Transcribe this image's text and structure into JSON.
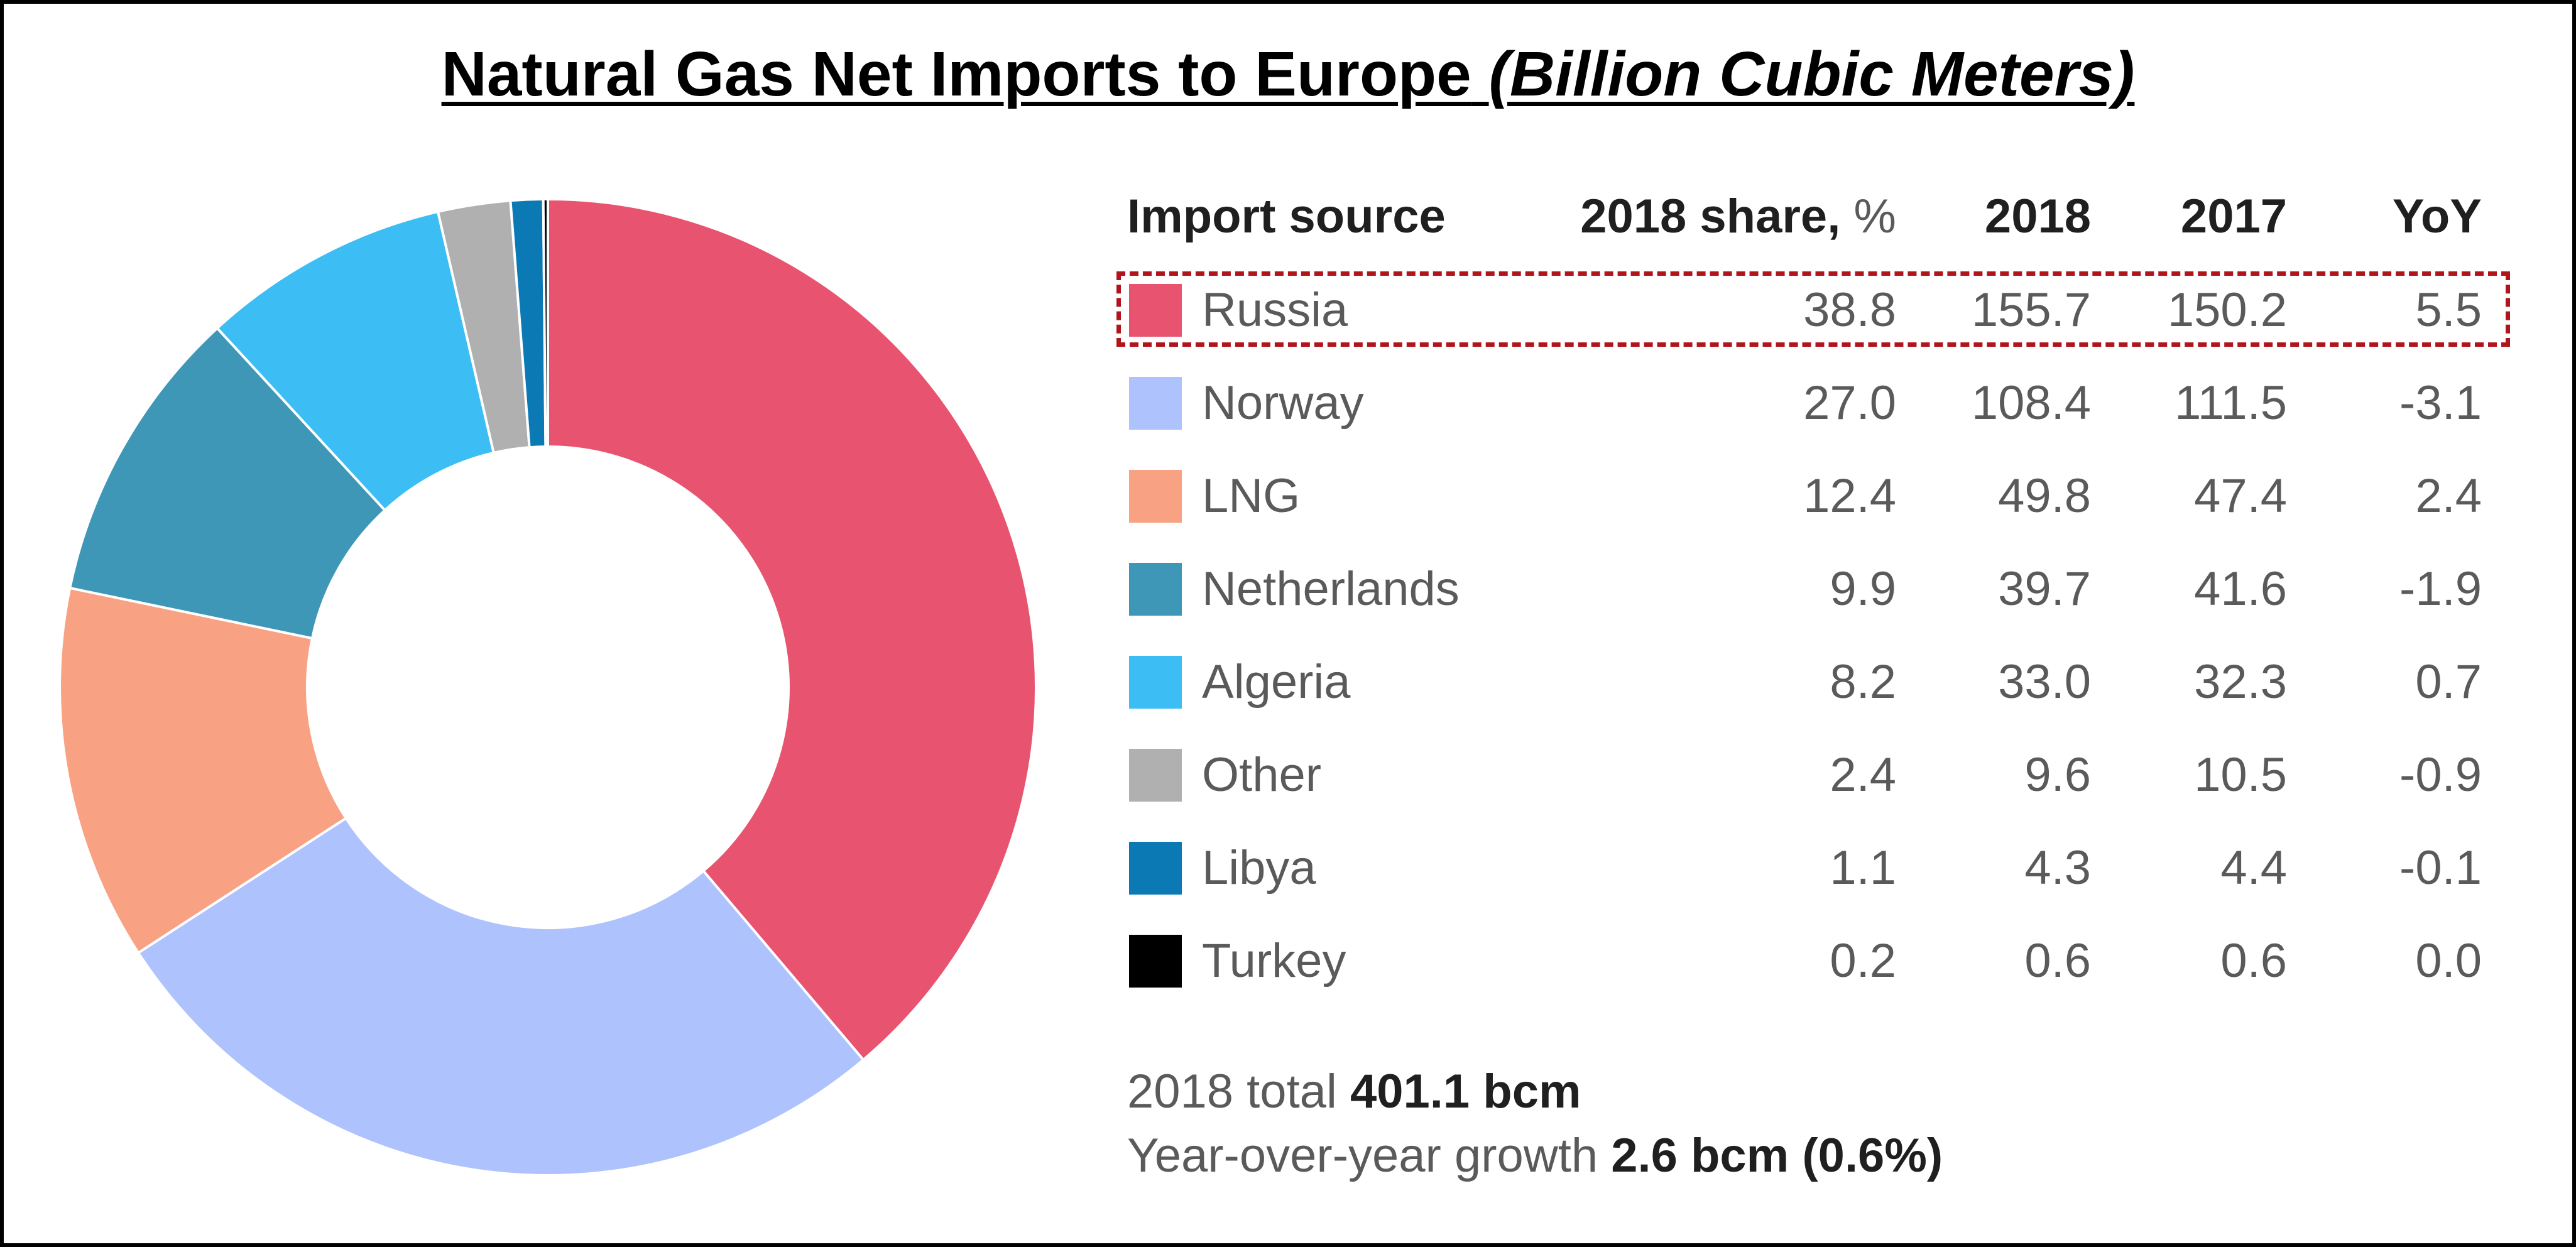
{
  "chart_data": {
    "type": "pie",
    "title": "Natural Gas Net Imports to Europe",
    "subtitle": "(Billion Cubic Meters)",
    "columns": [
      "Import source",
      "2018 share, %",
      "2018",
      "2017",
      "YoY"
    ],
    "rows": [
      {
        "source": "Russia",
        "share": "38.8",
        "v2018": "155.7",
        "v2017": "150.2",
        "yoy": "5.5",
        "color": "#e8546f",
        "highlighted": true
      },
      {
        "source": "Norway",
        "share": "27.0",
        "v2018": "108.4",
        "v2017": "111.5",
        "yoy": "-3.1",
        "color": "#aec2fd"
      },
      {
        "source": "LNG",
        "share": "12.4",
        "v2018": "49.8",
        "v2017": "47.4",
        "yoy": "2.4",
        "color": "#f8a283"
      },
      {
        "source": "Netherlands",
        "share": "9.9",
        "v2018": "39.7",
        "v2017": "41.6",
        "yoy": "-1.9",
        "color": "#3e97b6"
      },
      {
        "source": "Algeria",
        "share": "8.2",
        "v2018": "33.0",
        "v2017": "32.3",
        "yoy": "0.7",
        "color": "#3cbef4"
      },
      {
        "source": "Other",
        "share": "2.4",
        "v2018": "9.6",
        "v2017": "10.5",
        "yoy": "-0.9",
        "color": "#b0b0b0"
      },
      {
        "source": "Libya",
        "share": "1.1",
        "v2018": "4.3",
        "v2017": "4.4",
        "yoy": "-0.1",
        "color": "#0b79b4"
      },
      {
        "source": "Turkey",
        "share": "0.2",
        "v2018": "0.6",
        "v2017": "0.6",
        "yoy": "0.0",
        "color": "#000000"
      }
    ],
    "slice_values": [
      155.7,
      108.4,
      49.8,
      39.7,
      33.0,
      9.6,
      4.3,
      0.6
    ],
    "start": "12 o'clock, clockwise",
    "footer": {
      "total_label": "2018 total",
      "total_value": "401.1 bcm",
      "growth_label": "Year-over-year growth",
      "growth_value": "2.6 bcm (0.6%)"
    }
  }
}
